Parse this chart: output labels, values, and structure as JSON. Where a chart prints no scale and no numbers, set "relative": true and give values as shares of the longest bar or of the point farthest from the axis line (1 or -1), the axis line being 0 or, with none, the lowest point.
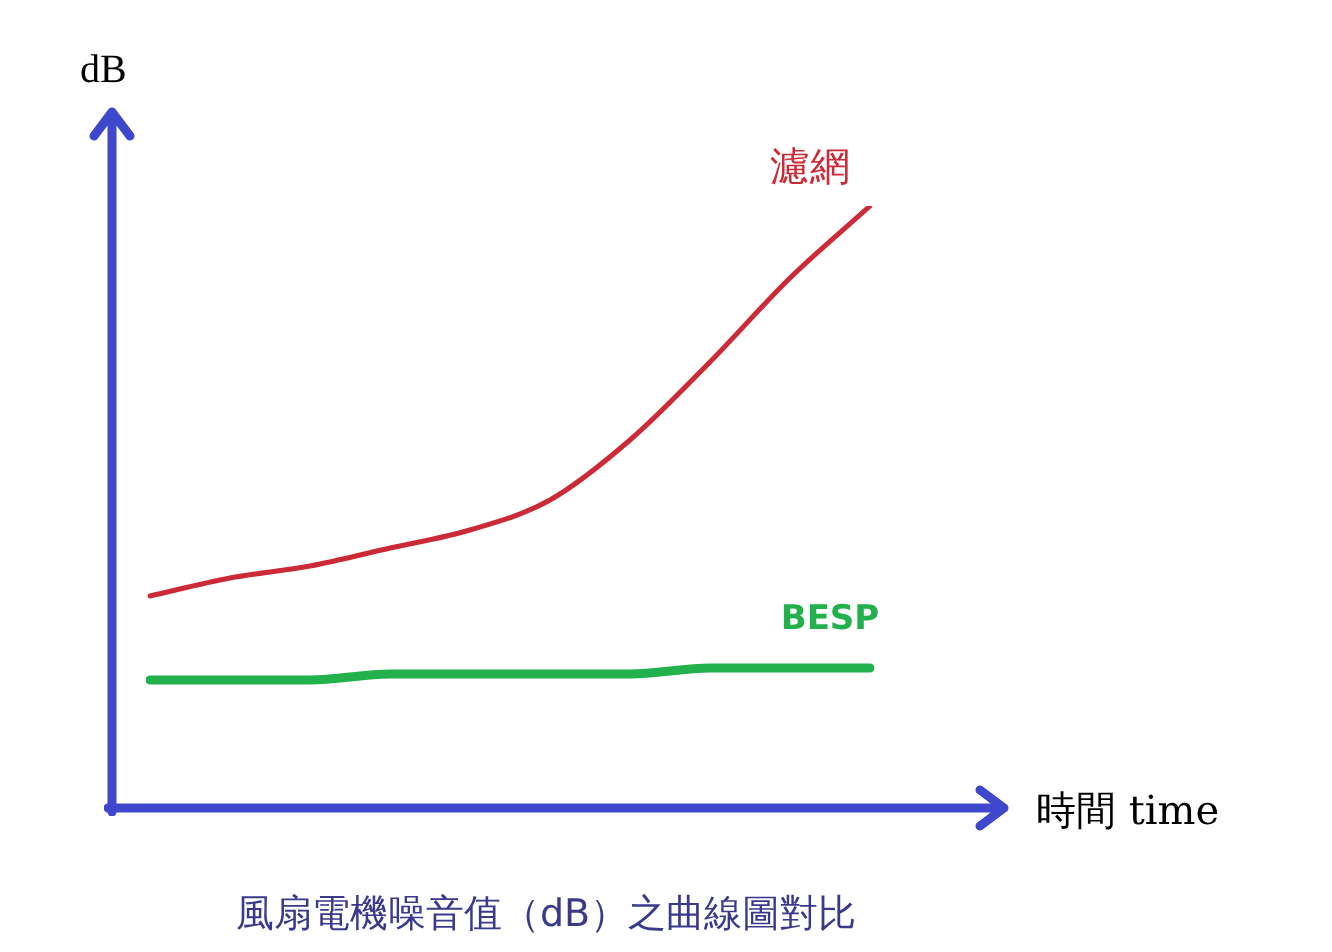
{
  "chart_data": {
    "type": "line",
    "relative": true,
    "title": "風扇電機噪音值（dB）之曲線圖對比",
    "xlabel": "時間 time",
    "ylabel": "dB",
    "categories": [
      null,
      null,
      null,
      null,
      null,
      null,
      null,
      null,
      null,
      null
    ],
    "series": [
      {
        "name": "濾網",
        "color": "#cc2a36",
        "values": [
          0.35,
          0.38,
          0.4,
          0.43,
          0.46,
          0.51,
          0.61,
          0.74,
          0.88,
          1
        ]
      },
      {
        "name": "BESP",
        "color": "#22b14c",
        "values": [
          0.21,
          0.21,
          0.21,
          0.22,
          0.22,
          0.22,
          0.22,
          0.23,
          0.23,
          0.23
        ]
      }
    ]
  }
}
